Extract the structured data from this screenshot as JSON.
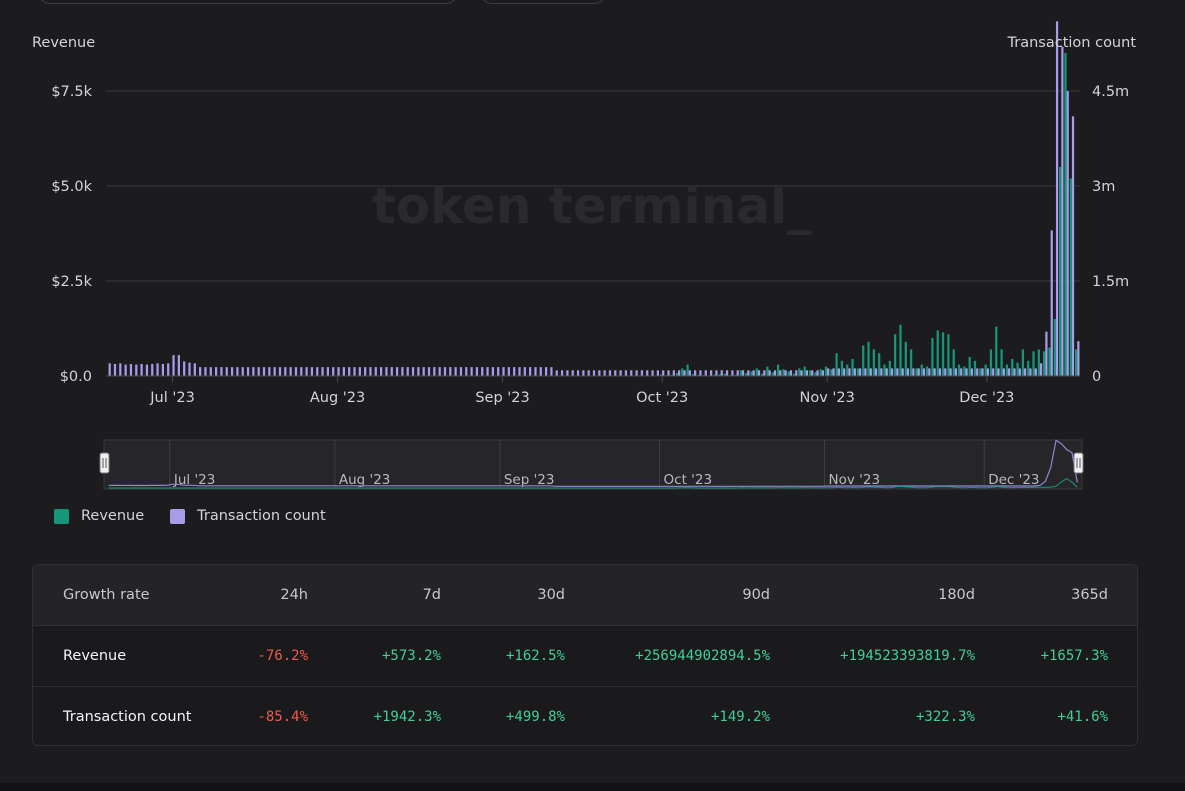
{
  "colors": {
    "revenue": "#15987a",
    "transactions": "#a99bea",
    "grid": "#38383e",
    "positive": "#3ecf9a",
    "negative": "#f05a4a"
  },
  "watermark": "token terminal_",
  "legend": {
    "revenue": "Revenue",
    "transactions": "Transaction count"
  },
  "navigator_labels": [
    "Jul '23",
    "Aug '23",
    "Sep '23",
    "Oct '23",
    "Nov '23",
    "Dec '23"
  ],
  "chart_data": {
    "type": "bar",
    "left_axis_title": "Revenue",
    "right_axis_title": "Transaction count",
    "x_ticks": [
      "Jul '23",
      "Aug '23",
      "Sep '23",
      "Oct '23",
      "Nov '23",
      "Dec '23"
    ],
    "y_left_ticks": [
      "$0.0",
      "$2.5k",
      "$5.0k",
      "$7.5k"
    ],
    "y_right_ticks": [
      "0",
      "1.5m",
      "3m",
      "4.5m"
    ],
    "y_left_range": [
      0,
      9000
    ],
    "y_right_range": [
      0,
      5400000
    ],
    "grid": true,
    "x_range": [
      "2023-06-19",
      "2023-12-18"
    ],
    "series": [
      {
        "name": "Revenue",
        "axis": "left",
        "note_periods": "daily",
        "segments": [
          {
            "from": "2023-06-19",
            "to": "2023-09-30",
            "value": 0
          },
          {
            "from": "2023-10-01",
            "to": "2023-10-15",
            "values": [
              40,
              20,
              30,
              80,
              200,
              300,
              50,
              30,
              20,
              10,
              30,
              40,
              60,
              20,
              30
            ]
          },
          {
            "from": "2023-10-16",
            "to": "2023-10-31",
            "values": [
              150,
              80,
              120,
              200,
              60,
              250,
              100,
              300,
              180,
              120,
              60,
              200,
              250,
              150,
              100,
              180
            ]
          },
          {
            "from": "2023-11-01",
            "to": "2023-11-30",
            "values": [
              250,
              180,
              600,
              400,
              300,
              450,
              200,
              800,
              900,
              700,
              600,
              300,
              400,
              1100,
              1350,
              900,
              700,
              200,
              300,
              250,
              1000,
              1200,
              1150,
              1100,
              700,
              300,
              250,
              500,
              400,
              200
            ]
          },
          {
            "from": "2023-12-01",
            "to": "2023-12-18",
            "values": [
              300,
              700,
              1300,
              700,
              300,
              450,
              350,
              700,
              400,
              650,
              700,
              650,
              750,
              1500,
              5500,
              8500,
              5200,
              700
            ]
          }
        ]
      },
      {
        "name": "Transaction count",
        "axis": "right",
        "segments": [
          {
            "from": "2023-06-19",
            "to": "2023-06-30",
            "values": [
              200000,
              190000,
              200000,
              180000,
              190000,
              180000,
              190000,
              180000,
              190000,
              200000,
              190000,
              200000
            ]
          },
          {
            "from": "2023-07-01",
            "to": "2023-07-05",
            "values": [
              330000,
              330000,
              230000,
              210000,
              200000
            ]
          },
          {
            "from": "2023-07-06",
            "to": "2023-09-10",
            "value": 140000
          },
          {
            "from": "2023-09-11",
            "to": "2023-10-31",
            "value": 90000
          },
          {
            "from": "2023-11-01",
            "to": "2023-12-10",
            "value": 120000
          },
          {
            "from": "2023-12-11",
            "to": "2023-12-18",
            "values": [
              200000,
              700000,
              2300000,
              5600000,
              5200000,
              4500000,
              4100000,
              550000
            ]
          }
        ]
      }
    ]
  },
  "table": {
    "headers": [
      "Growth rate",
      "24h",
      "7d",
      "30d",
      "90d",
      "180d",
      "365d"
    ],
    "rows": [
      {
        "label": "Revenue",
        "values": [
          "-76.2%",
          "+573.2%",
          "+162.5%",
          "+256944902894.5%",
          "+194523393819.7%",
          "+1657.3%"
        ]
      },
      {
        "label": "Transaction count",
        "values": [
          "-85.4%",
          "+1942.3%",
          "+499.8%",
          "+149.2%",
          "+322.3%",
          "+41.6%"
        ]
      }
    ]
  }
}
